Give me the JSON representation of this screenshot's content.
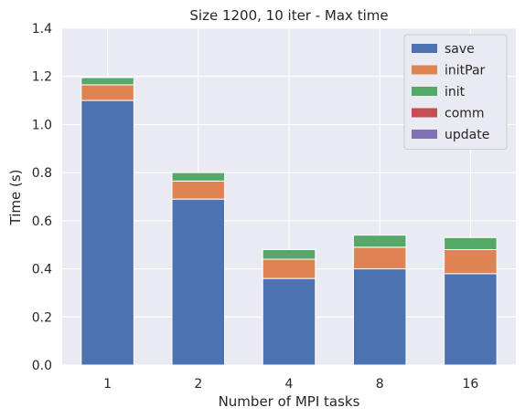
{
  "chart_data": {
    "type": "bar",
    "stacked": true,
    "title": "Size 1200, 10 iter - Max time",
    "xlabel": "Number of MPI tasks",
    "ylabel": "Time (s)",
    "categories": [
      "1",
      "2",
      "4",
      "8",
      "16"
    ],
    "ylim": [
      0,
      1.4
    ],
    "yticks": [
      "0.0",
      "0.2",
      "0.4",
      "0.6",
      "0.8",
      "1.0",
      "1.2",
      "1.4"
    ],
    "grid": true,
    "legend_position": "top-right",
    "series": [
      {
        "name": "save",
        "color": "#4c72b0",
        "values": [
          1.1,
          0.69,
          0.36,
          0.4,
          0.38
        ]
      },
      {
        "name": "initPar",
        "color": "#dd8452",
        "values": [
          0.065,
          0.075,
          0.08,
          0.09,
          0.1
        ]
      },
      {
        "name": "init",
        "color": "#55a868",
        "values": [
          0.03,
          0.035,
          0.04,
          0.05,
          0.05
        ]
      },
      {
        "name": "comm",
        "color": "#c44e52",
        "values": [
          0.0,
          0.0,
          0.0,
          0.0,
          0.0
        ]
      },
      {
        "name": "update",
        "color": "#8172b3",
        "values": [
          0.0,
          0.0,
          0.0,
          0.0,
          0.0
        ]
      }
    ]
  }
}
